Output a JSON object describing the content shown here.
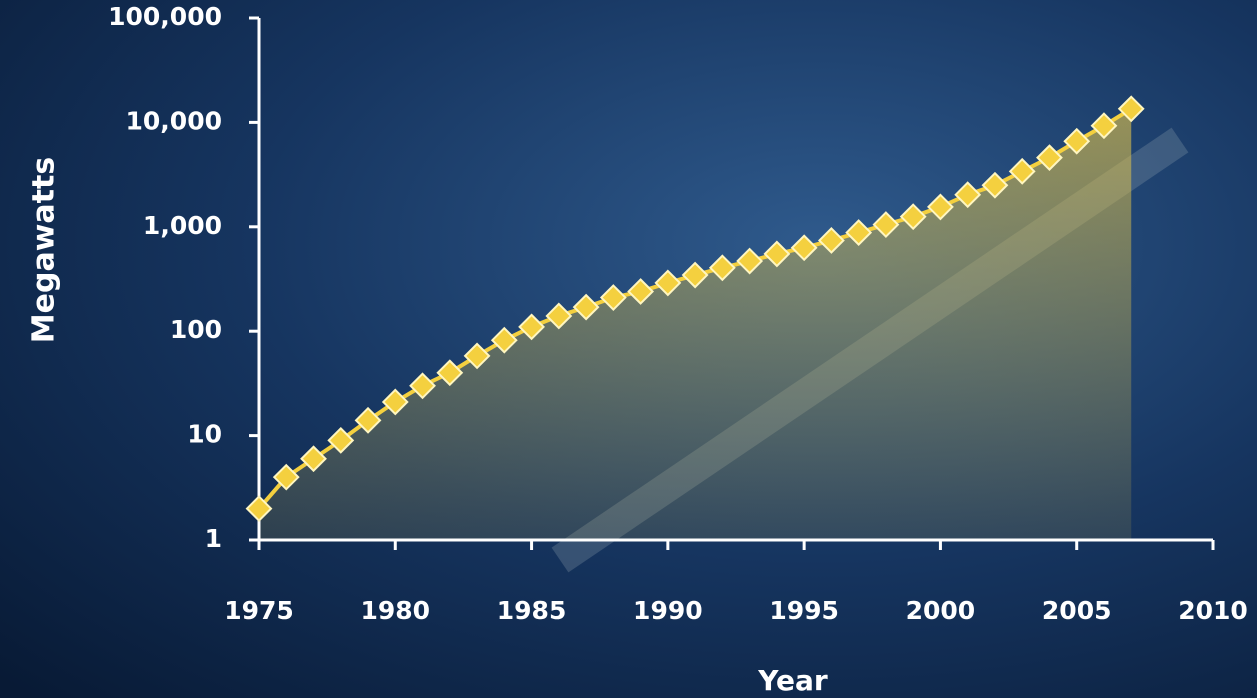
{
  "chart_data": {
    "type": "line",
    "xlabel": "Year",
    "ylabel": "Megawatts",
    "x": [
      1975,
      1976,
      1977,
      1978,
      1979,
      1980,
      1981,
      1982,
      1983,
      1984,
      1985,
      1986,
      1987,
      1988,
      1989,
      1990,
      1991,
      1992,
      1993,
      1994,
      1995,
      1996,
      1997,
      1998,
      1999,
      2000,
      2001,
      2002,
      2003,
      2004,
      2005,
      2006,
      2007
    ],
    "values": [
      2,
      4,
      6,
      9,
      14,
      21,
      30,
      40,
      58,
      82,
      110,
      140,
      170,
      210,
      240,
      290,
      345,
      405,
      470,
      550,
      630,
      740,
      880,
      1050,
      1250,
      1550,
      2030,
      2500,
      3400,
      4600,
      6600,
      9300,
      13500
    ],
    "color": "#f4d03f",
    "area": true,
    "log_y": true,
    "xlim": [
      1975,
      2010
    ],
    "xticks": [
      1975,
      1980,
      1985,
      1990,
      1995,
      2000,
      2005,
      2010
    ],
    "ylim": [
      1,
      100000
    ],
    "yticks": [
      1,
      10,
      100,
      {
        "value": 1000,
        "label": "1,000"
      },
      {
        "value": 10000,
        "label": "10,000"
      },
      {
        "value": 100000,
        "label": "100,000"
      }
    ]
  }
}
